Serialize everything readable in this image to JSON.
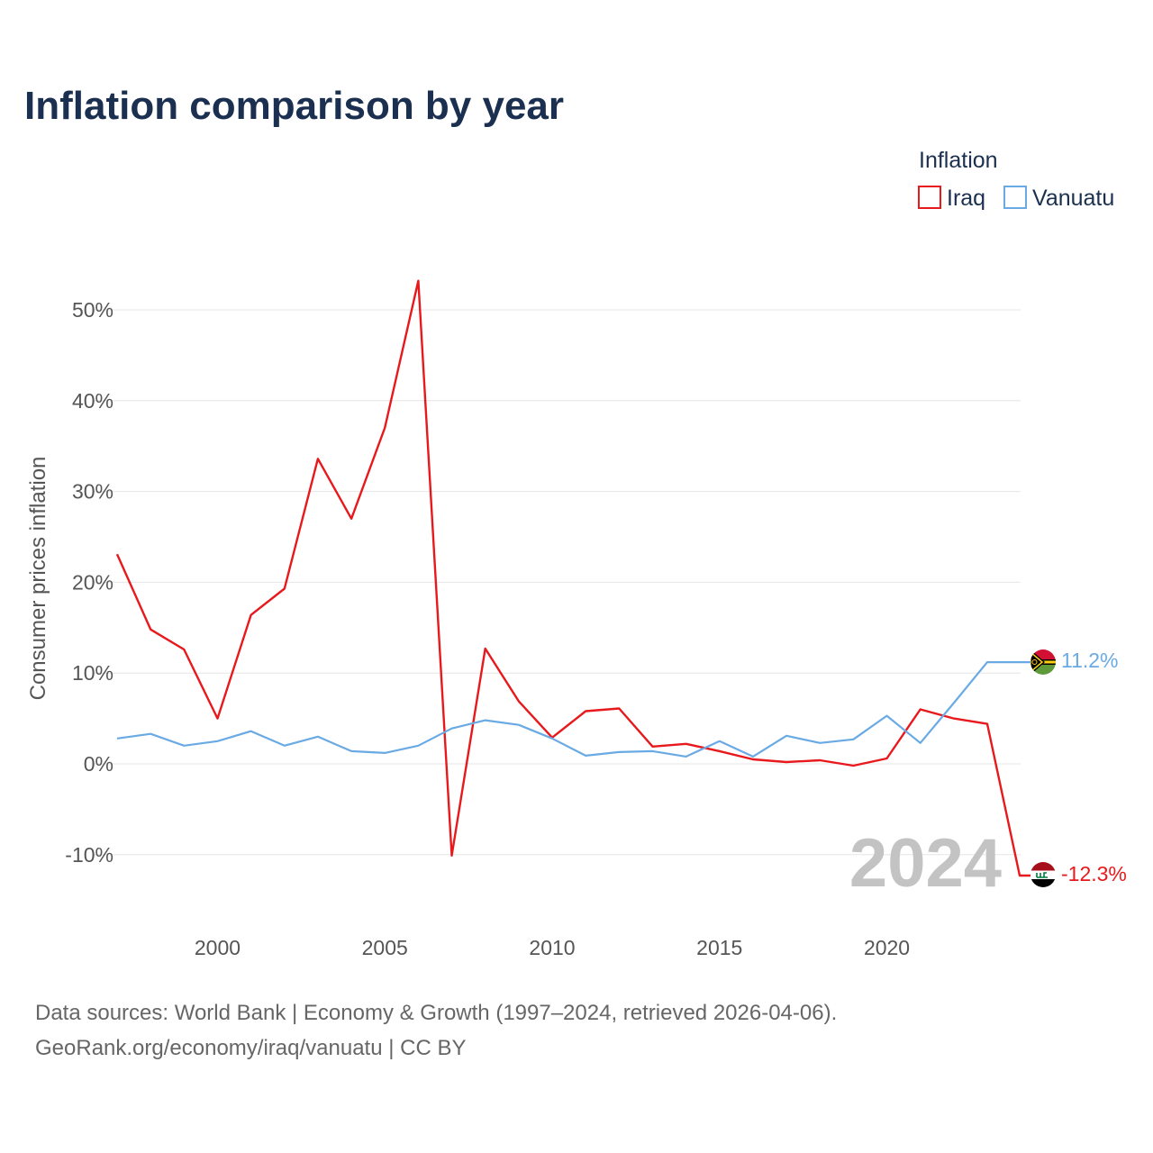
{
  "title": "Inflation comparison by year",
  "legend": {
    "title": "Inflation",
    "items": [
      {
        "name": "Iraq",
        "color": "#e8191c"
      },
      {
        "name": "Vanuatu",
        "color": "#6aaae4"
      }
    ]
  },
  "year_watermark": "2024",
  "source_line1": "Data sources: World Bank | Economy & Growth (1997–2024, retrieved 2026-04-06).",
  "source_line2": "GeoRank.org/economy/iraq/vanuatu | CC BY",
  "end_labels": {
    "iraq": "-12.3%",
    "vanuatu": "11.2%"
  },
  "chart_data": {
    "type": "line",
    "title": "Inflation comparison by year",
    "xlabel": "",
    "ylabel": "Consumer prices inflation",
    "xlim": [
      1997,
      2024
    ],
    "ylim": [
      -14,
      55
    ],
    "x_ticks": [
      2000,
      2005,
      2010,
      2015,
      2020
    ],
    "y_ticks": [
      -10,
      0,
      10,
      20,
      30,
      40,
      50
    ],
    "y_tick_labels": [
      "-10%",
      "0%",
      "10%",
      "20%",
      "30%",
      "40%",
      "50%"
    ],
    "x": [
      1997,
      1998,
      1999,
      2000,
      2001,
      2002,
      2003,
      2004,
      2005,
      2006,
      2007,
      2008,
      2009,
      2010,
      2011,
      2012,
      2013,
      2014,
      2015,
      2016,
      2017,
      2018,
      2019,
      2020,
      2021,
      2022,
      2023,
      2024
    ],
    "series": [
      {
        "name": "Iraq",
        "color": "#e8191c",
        "values": [
          23.1,
          14.8,
          12.6,
          5.0,
          16.4,
          19.3,
          33.6,
          27.0,
          37.0,
          53.2,
          -10.1,
          12.7,
          6.9,
          2.9,
          5.8,
          6.1,
          1.9,
          2.2,
          1.4,
          0.5,
          0.2,
          0.4,
          -0.2,
          0.6,
          6.0,
          5.0,
          4.4,
          -12.3
        ]
      },
      {
        "name": "Vanuatu",
        "color": "#6aaae4",
        "values": [
          2.8,
          3.3,
          2.0,
          2.5,
          3.6,
          2.0,
          3.0,
          1.4,
          1.2,
          2.0,
          3.9,
          4.8,
          4.3,
          2.8,
          0.9,
          1.3,
          1.4,
          0.8,
          2.5,
          0.8,
          3.1,
          2.3,
          2.7,
          5.3,
          2.3,
          6.7,
          11.2,
          11.2
        ]
      }
    ]
  }
}
